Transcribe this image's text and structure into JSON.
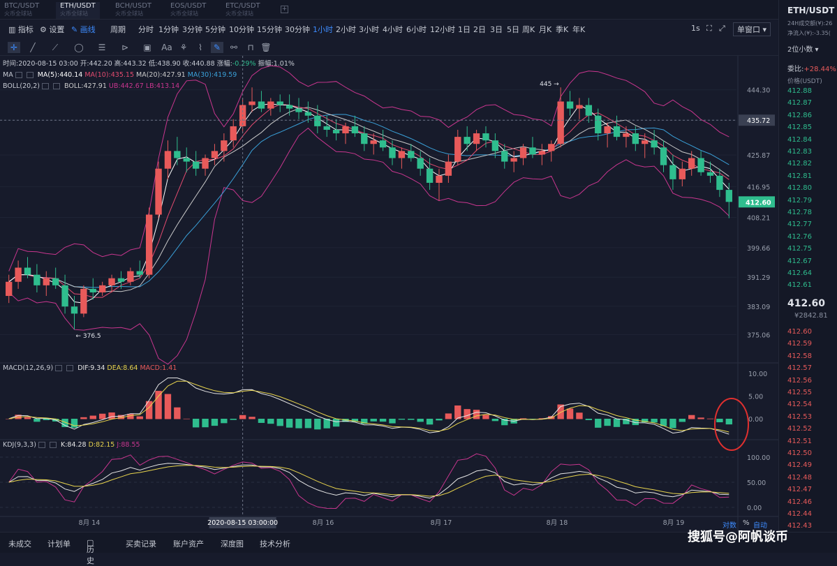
{
  "pair_tabs": [
    {
      "label": "BTC/USDT",
      "sub": "火币全球站"
    },
    {
      "label": "ETH/USDT",
      "sub": "火币全球站"
    },
    {
      "label": "BCH/USDT",
      "sub": "火币全球站"
    },
    {
      "label": "EOS/USDT",
      "sub": "火币全球站"
    },
    {
      "label": "ETC/USDT",
      "sub": "火币全球站"
    }
  ],
  "toolbar": {
    "indicator": "指标",
    "settings": "设置",
    "draw": "画线",
    "period": "周期",
    "intervals": [
      "分时",
      "1分钟",
      "3分钟",
      "5分钟",
      "10分钟",
      "15分钟",
      "30分钟",
      "1小时",
      "2小时",
      "3小时",
      "4小时",
      "6小时",
      "12小时",
      "1日",
      "2日",
      "3日",
      "5日",
      "周K",
      "月K",
      "季K",
      "年K"
    ],
    "active_interval": "1小时",
    "refresh": "1s",
    "window": "单窗口"
  },
  "info": {
    "ohlc": "时间:2020-08-15 03:00  开:442.20  高:443.32  低:438.90  收:440.88  涨幅:",
    "change": "-0.29%",
    "amp": "振幅:1.01%",
    "ma_label": "MA",
    "ma5": "MA(5):440.14",
    "ma10": "MA(10):435.15",
    "ma20": "MA(20):427.91",
    "ma30": "MA(30):419.59",
    "boll_label": "BOLL(20,2)",
    "boll": "BOLL:427.91",
    "ub": "UB:442.67",
    "lb": "LB:413.14",
    "macd_label": "MACD(12,26,9)",
    "dif": "DIF:9.34",
    "dea": "DEA:8.64",
    "macd": "MACD:1.41",
    "kdj_label": "KDJ(9,3,3)",
    "k": "K:84.28",
    "d": "D:82.15",
    "j": "J:88.55"
  },
  "colors": {
    "up": "#e85a5a",
    "down": "#2fbd8e",
    "ma5": "#ffffff",
    "ma10": "#e34b6f",
    "ma20": "#c9c9c9",
    "ma30": "#3aa0d8",
    "boll": "#c9368f",
    "dif": "#e6e6e6",
    "dea": "#e8d44d",
    "j": "#c9368f"
  },
  "chart_data": {
    "type": "candlestick",
    "price_ticks": [
      "444.30",
      "435.72",
      "425.87",
      "416.95",
      "408.21",
      "399.66",
      "391.29",
      "383.09",
      "375.06"
    ],
    "crosshair_price": "435.72",
    "last_price": "412.60",
    "high_annotation": "445",
    "low_annotation": "376.5",
    "macd_ticks": [
      "10.00",
      "5.00",
      "0.00"
    ],
    "kdj_ticks": [
      "100.00",
      "50.00",
      "0.00"
    ],
    "x_labels": [
      "8月 14",
      "8月 16",
      "8月 17",
      "8月 18",
      "8月 19"
    ],
    "crosshair_time": "2020-08-15 03:00:00",
    "candles_ohlc": [
      [
        386,
        392,
        384,
        390
      ],
      [
        390,
        396,
        388,
        394
      ],
      [
        394,
        397,
        391,
        392
      ],
      [
        392,
        395,
        387,
        389
      ],
      [
        389,
        393,
        386,
        391
      ],
      [
        391,
        394,
        388,
        389
      ],
      [
        389,
        392,
        381,
        383
      ],
      [
        383,
        386,
        376.5,
        381
      ],
      [
        381,
        389,
        380,
        388
      ],
      [
        388,
        391,
        385,
        387
      ],
      [
        387,
        390,
        386,
        389
      ],
      [
        389,
        392,
        387,
        391
      ],
      [
        391,
        393,
        388,
        390
      ],
      [
        390,
        394,
        389,
        393
      ],
      [
        393,
        396,
        391,
        392
      ],
      [
        392,
        411,
        391,
        409
      ],
      [
        409,
        424,
        408,
        422
      ],
      [
        422,
        430,
        419,
        427
      ],
      [
        427,
        431,
        423,
        425
      ],
      [
        425,
        428,
        421,
        424
      ],
      [
        424,
        427,
        420,
        422
      ],
      [
        422,
        426,
        420,
        425
      ],
      [
        425,
        429,
        423,
        427
      ],
      [
        427,
        432,
        424,
        430
      ],
      [
        430,
        436,
        428,
        434
      ],
      [
        434,
        442,
        432,
        440
      ],
      [
        440,
        445,
        438,
        441
      ],
      [
        441,
        444,
        438,
        439
      ],
      [
        439,
        442,
        437,
        441
      ],
      [
        441,
        443,
        438,
        440
      ],
      [
        440,
        443,
        437,
        439
      ],
      [
        439,
        442,
        436,
        438
      ],
      [
        438,
        441,
        435,
        437
      ],
      [
        437,
        440,
        432,
        434
      ],
      [
        434,
        437,
        431,
        433
      ],
      [
        433,
        436,
        430,
        432
      ],
      [
        432,
        435,
        429,
        434
      ],
      [
        434,
        437,
        431,
        432
      ],
      [
        432,
        434,
        427,
        429
      ],
      [
        429,
        432,
        426,
        430
      ],
      [
        430,
        433,
        427,
        428
      ],
      [
        428,
        430,
        423,
        425
      ],
      [
        425,
        428,
        422,
        427
      ],
      [
        427,
        429,
        424,
        425
      ],
      [
        425,
        427,
        420,
        422
      ],
      [
        422,
        425,
        416,
        418
      ],
      [
        418,
        422,
        413,
        420
      ],
      [
        420,
        426,
        418,
        424
      ],
      [
        424,
        433,
        423,
        431
      ],
      [
        431,
        434,
        427,
        429
      ],
      [
        429,
        433,
        427,
        432
      ],
      [
        432,
        434,
        428,
        430
      ],
      [
        430,
        432,
        425,
        427
      ],
      [
        427,
        429,
        422,
        424
      ],
      [
        424,
        427,
        421,
        425
      ],
      [
        425,
        429,
        423,
        428
      ],
      [
        428,
        431,
        425,
        426
      ],
      [
        426,
        429,
        423,
        427
      ],
      [
        427,
        430,
        424,
        429
      ],
      [
        429,
        445,
        428,
        441
      ],
      [
        441,
        444,
        437,
        439
      ],
      [
        439,
        442,
        436,
        440
      ],
      [
        440,
        442,
        435,
        437
      ],
      [
        437,
        439,
        430,
        432
      ],
      [
        432,
        435,
        428,
        434
      ],
      [
        434,
        437,
        430,
        431
      ],
      [
        431,
        434,
        428,
        432
      ],
      [
        432,
        434,
        427,
        429
      ],
      [
        429,
        432,
        425,
        430
      ],
      [
        430,
        433,
        426,
        428
      ],
      [
        428,
        430,
        421,
        423
      ],
      [
        423,
        426,
        416,
        419
      ],
      [
        419,
        424,
        417,
        422
      ],
      [
        422,
        427,
        420,
        425
      ],
      [
        425,
        427,
        420,
        421
      ],
      [
        421,
        424,
        418,
        420
      ],
      [
        420,
        422,
        414,
        416
      ],
      [
        416,
        418,
        408,
        412.6
      ]
    ]
  },
  "right_panel": {
    "pair": "ETH/USDT",
    "vol_label": "24H成交额(¥):26",
    "change_label": "净流入(¥):-3.35(",
    "precision": "2位小数",
    "ratio_label": "委比:",
    "ratio": "+28.44%",
    "price_header": "价格(USDT)",
    "asks": [
      "412.88",
      "412.87",
      "412.86",
      "412.85",
      "412.84",
      "412.83",
      "412.82",
      "412.81",
      "412.80",
      "412.79",
      "412.78",
      "412.77",
      "412.76",
      "412.75",
      "412.67",
      "412.64",
      "412.61"
    ],
    "last": "412.60",
    "last_cny": "¥2842.81",
    "bids": [
      "412.60",
      "412.59",
      "412.58",
      "412.57",
      "412.56",
      "412.55",
      "412.54",
      "412.53",
      "412.52",
      "412.51",
      "412.50",
      "412.49",
      "412.48",
      "412.47",
      "412.46",
      "412.44",
      "412.43"
    ]
  },
  "bottom_tabs": [
    "未成交",
    "计划单",
    "历史",
    "买卖记录",
    "账户资产",
    "深度图",
    "技术分析"
  ],
  "bottom_right": {
    "pct": "%",
    "auto": "自动",
    "log": "对数"
  },
  "watermark": "搜狐号@阿帆谈币"
}
